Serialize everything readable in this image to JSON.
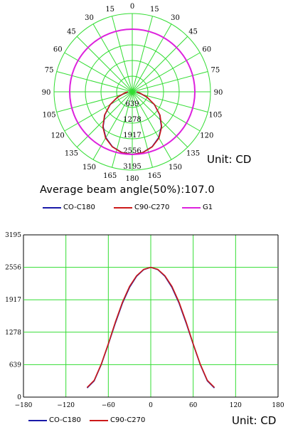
{
  "colors": {
    "grid": "#33dd33",
    "c0_c180": "#1a1aa8",
    "c90_c270": "#cc1a1a",
    "g1": "#dd22dd"
  },
  "polar": {
    "unit_label": "Unit: CD",
    "beam_label": "Average beam angle(50%):107.0",
    "angle_labels_left": [
      "180",
      "165",
      "150",
      "135",
      "120",
      "105",
      "90",
      "75",
      "60",
      "45",
      "30",
      "15",
      "0"
    ],
    "angle_labels_right": [
      "165",
      "150",
      "135",
      "120",
      "105",
      "90",
      "75",
      "60",
      "45",
      "30",
      "15"
    ],
    "radial_labels": [
      "639",
      "1278",
      "1917",
      "2556",
      "3195"
    ],
    "legend": [
      "CO-C180",
      "C90-C270",
      "G1"
    ]
  },
  "cartesian": {
    "unit_label": "Unit: CD",
    "legend": [
      "CO-C180",
      "C90-C270"
    ]
  },
  "chart_data": [
    {
      "type": "polar",
      "title": "",
      "unit": "Unit: CD",
      "annotation": "Average beam angle(50%):107.0",
      "r_max": 3195,
      "r_ticks": [
        639,
        1278,
        1917,
        2556,
        3195
      ],
      "angle_ticks": [
        0,
        15,
        30,
        45,
        60,
        75,
        90,
        105,
        120,
        135,
        150,
        165,
        180
      ],
      "series": [
        {
          "name": "CO-C180",
          "angles": [
            0,
            10,
            20,
            30,
            40,
            50,
            60,
            70,
            80,
            90
          ],
          "values": [
            2556,
            2510,
            2380,
            2160,
            1850,
            1460,
            1040,
            640,
            320,
            180
          ]
        },
        {
          "name": "C90-C270",
          "angles": [
            0,
            10,
            20,
            30,
            40,
            50,
            60,
            70,
            80,
            90
          ],
          "values": [
            2556,
            2515,
            2390,
            2180,
            1870,
            1480,
            1050,
            650,
            330,
            190
          ]
        },
        {
          "name": "G1",
          "angles": [
            0,
            15,
            30,
            45,
            60,
            75,
            90,
            105,
            120,
            135,
            150,
            165,
            180
          ],
          "values": [
            2556,
            2556,
            2556,
            2556,
            2556,
            2556,
            2556,
            2556,
            2556,
            2556,
            2556,
            2556,
            2556
          ]
        }
      ]
    },
    {
      "type": "line",
      "title": "",
      "unit": "Unit: CD",
      "xlim": [
        -180,
        180
      ],
      "ylim": [
        0,
        3195
      ],
      "xticks": [
        -180,
        -120,
        -60,
        0,
        60,
        120,
        180
      ],
      "yticks": [
        0,
        639,
        1278,
        1917,
        2556,
        3195
      ],
      "grid": true,
      "series": [
        {
          "name": "CO-C180",
          "x": [
            -90,
            -80,
            -70,
            -60,
            -50,
            -40,
            -30,
            -20,
            -10,
            0,
            10,
            20,
            30,
            40,
            50,
            60,
            70,
            80,
            90
          ],
          "y": [
            180,
            320,
            640,
            1040,
            1460,
            1850,
            2160,
            2380,
            2510,
            2556,
            2510,
            2380,
            2160,
            1850,
            1460,
            1040,
            640,
            320,
            180
          ]
        },
        {
          "name": "C90-C270",
          "x": [
            -90,
            -80,
            -70,
            -60,
            -50,
            -40,
            -30,
            -20,
            -10,
            0,
            10,
            20,
            30,
            40,
            50,
            60,
            70,
            80,
            90
          ],
          "y": [
            190,
            330,
            650,
            1050,
            1480,
            1870,
            2180,
            2390,
            2515,
            2556,
            2515,
            2390,
            2180,
            1870,
            1480,
            1050,
            650,
            330,
            190
          ]
        }
      ]
    }
  ]
}
